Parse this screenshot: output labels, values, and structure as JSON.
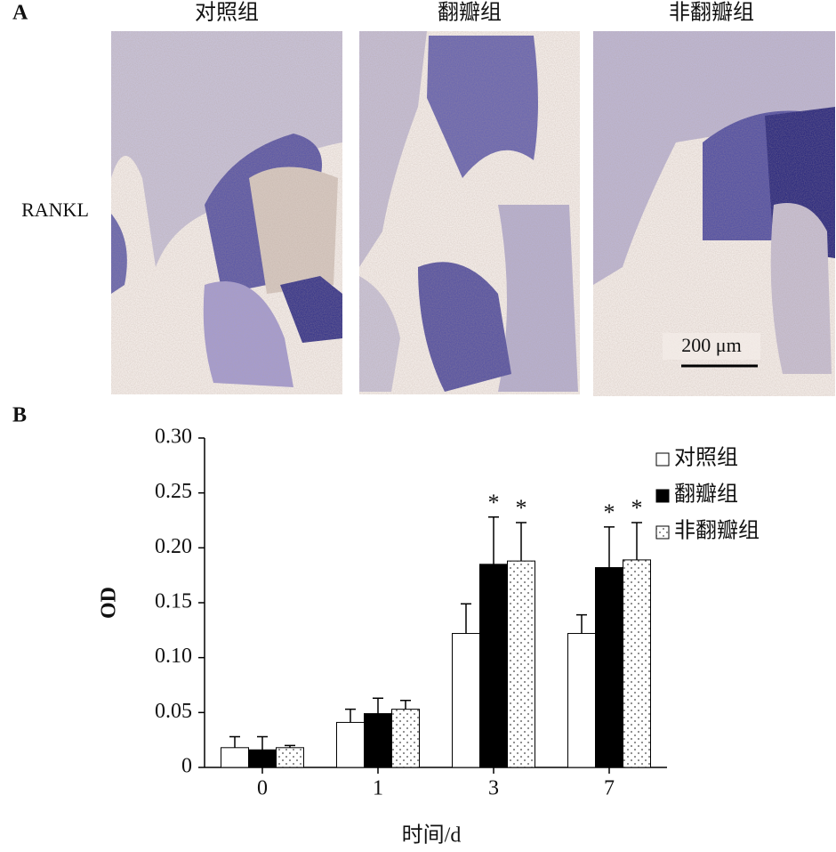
{
  "panel_labels": [
    "A",
    "B"
  ],
  "panel_a": {
    "columns": [
      "对照组",
      "翻瓣组",
      "非翻瓣组"
    ],
    "row_label": "RANKL",
    "scale_bar": "200 μm"
  },
  "chart_data": {
    "type": "bar",
    "categories": [
      "0",
      "1",
      "3",
      "7"
    ],
    "series": [
      {
        "name": "对照组",
        "color": "#ffffff",
        "values": [
          0.018,
          0.041,
          0.122,
          0.122
        ],
        "errors": [
          0.01,
          0.012,
          0.027,
          0.017
        ],
        "markers": [
          null,
          null,
          null,
          null
        ]
      },
      {
        "name": "翻瓣组",
        "color": "#000000",
        "values": [
          0.016,
          0.049,
          0.185,
          0.182
        ],
        "errors": [
          0.012,
          0.014,
          0.043,
          0.037
        ],
        "markers": [
          null,
          null,
          "*",
          "*"
        ]
      },
      {
        "name": "非翻瓣组",
        "color": "#ffffff",
        "pattern": "dots",
        "values": [
          0.018,
          0.053,
          0.188,
          0.189
        ],
        "errors": [
          0.002,
          0.008,
          0.035,
          0.034
        ],
        "markers": [
          null,
          null,
          "*",
          "*"
        ]
      }
    ],
    "ylabel": "OD",
    "xlabel": "时间/d",
    "ylim": [
      0,
      0.3
    ],
    "yticks": [
      0,
      0.05,
      {
        "value": 0.1,
        "label": "0.10"
      },
      0.15,
      {
        "value": 0.2,
        "label": "0.20"
      },
      0.25,
      {
        "value": 0.3,
        "label": "0.30"
      }
    ],
    "legend": "upper right"
  }
}
